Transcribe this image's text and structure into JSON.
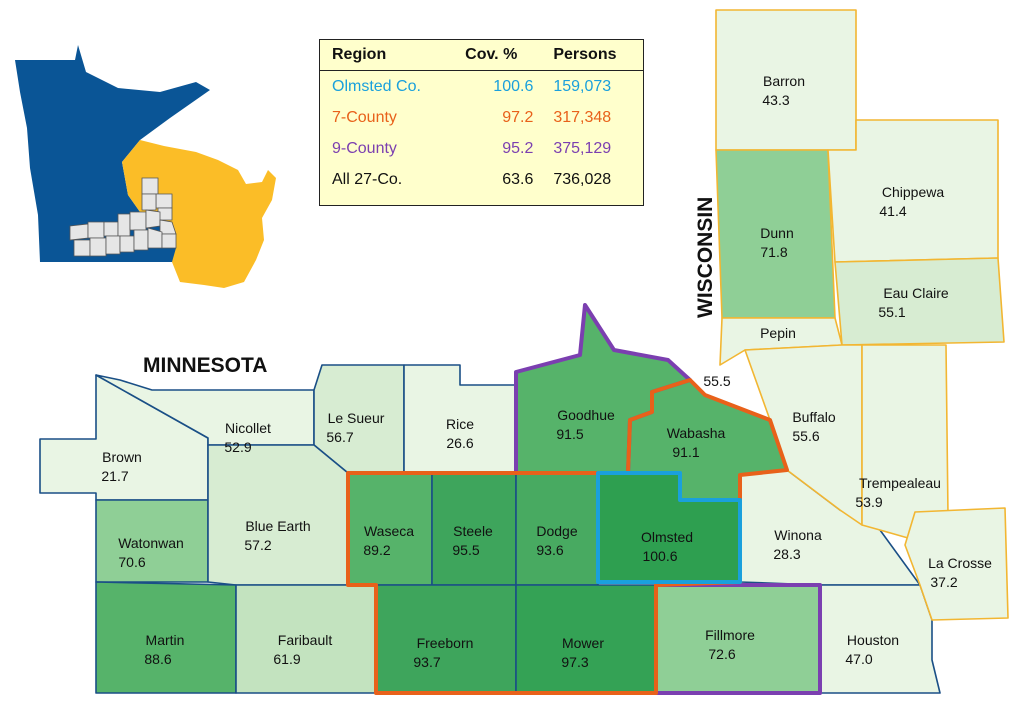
{
  "states": {
    "minnesota": "MINNESOTA",
    "wisconsin": "WISCONSIN"
  },
  "legend": {
    "headers": {
      "region": "Region",
      "coverage": "Cov. %",
      "persons": "Persons"
    },
    "rows": [
      {
        "region": "Olmsted Co.",
        "coverage": "100.6",
        "persons": "159,073",
        "color": "#1aa0dc"
      },
      {
        "region": "7-County",
        "coverage": "97.2",
        "persons": "317,348",
        "color": "#e8611a"
      },
      {
        "region": "9-County",
        "coverage": "95.2",
        "persons": "375,129",
        "color": "#7b3fb0"
      },
      {
        "region": "All 27-Co.",
        "coverage": "63.6",
        "persons": "736,028",
        "color": "#111111"
      }
    ]
  },
  "counties": {
    "brown": {
      "name": "Brown",
      "value": "21.7"
    },
    "nicollet": {
      "name": "Nicollet",
      "value": "52.9"
    },
    "le_sueur": {
      "name": "Le Sueur",
      "value": "56.7"
    },
    "rice": {
      "name": "Rice",
      "value": "26.6"
    },
    "goodhue": {
      "name": "Goodhue",
      "value": "91.5"
    },
    "wabasha": {
      "name": "Wabasha",
      "value": "91.1"
    },
    "watonwan": {
      "name": "Watonwan",
      "value": "70.6"
    },
    "blue_earth": {
      "name": "Blue Earth",
      "value": "57.2"
    },
    "waseca": {
      "name": "Waseca",
      "value": "89.2"
    },
    "steele": {
      "name": "Steele",
      "value": "95.5"
    },
    "dodge": {
      "name": "Dodge",
      "value": "93.6"
    },
    "olmsted": {
      "name": "Olmsted",
      "value": "100.6"
    },
    "winona": {
      "name": "Winona",
      "value": "28.3"
    },
    "martin": {
      "name": "Martin",
      "value": "88.6"
    },
    "faribault": {
      "name": "Faribault",
      "value": "61.9"
    },
    "freeborn": {
      "name": "Freeborn",
      "value": "93.7"
    },
    "mower": {
      "name": "Mower",
      "value": "97.3"
    },
    "fillmore": {
      "name": "Fillmore",
      "value": "72.6"
    },
    "houston": {
      "name": "Houston",
      "value": "47.0"
    },
    "barron": {
      "name": "Barron",
      "value": "43.3"
    },
    "dunn": {
      "name": "Dunn",
      "value": "71.8"
    },
    "chippewa": {
      "name": "Chippewa",
      "value": "41.4"
    },
    "eau_claire": {
      "name": "Eau Claire",
      "value": "55.1"
    },
    "pepin": {
      "name": "Pepin",
      "value": "55.5"
    },
    "buffalo": {
      "name": "Buffalo",
      "value": "55.6"
    },
    "trempealeau": {
      "name": "Trempealeau",
      "value": "53.9"
    },
    "la_crosse": {
      "name": "La Crosse",
      "value": "37.2"
    }
  },
  "colors": {
    "minnesota_inset": "#0a5596",
    "wisconsin_inset": "#fbbd27",
    "county_border_mn": "#1a4f86",
    "county_border_wi": "#f2b632",
    "shade_lightest": "#e9f5e4",
    "shade_light": "#d7ecd2",
    "shade_mid_light": "#c3e3bf",
    "shade_mid": "#8fcf96",
    "shade_dark": "#56b36a",
    "shade_darkest": "#2e9f50",
    "outline_9_county": "#7b3fb0",
    "outline_7_county": "#e8611a",
    "outline_olmsted": "#1aa0dc"
  }
}
